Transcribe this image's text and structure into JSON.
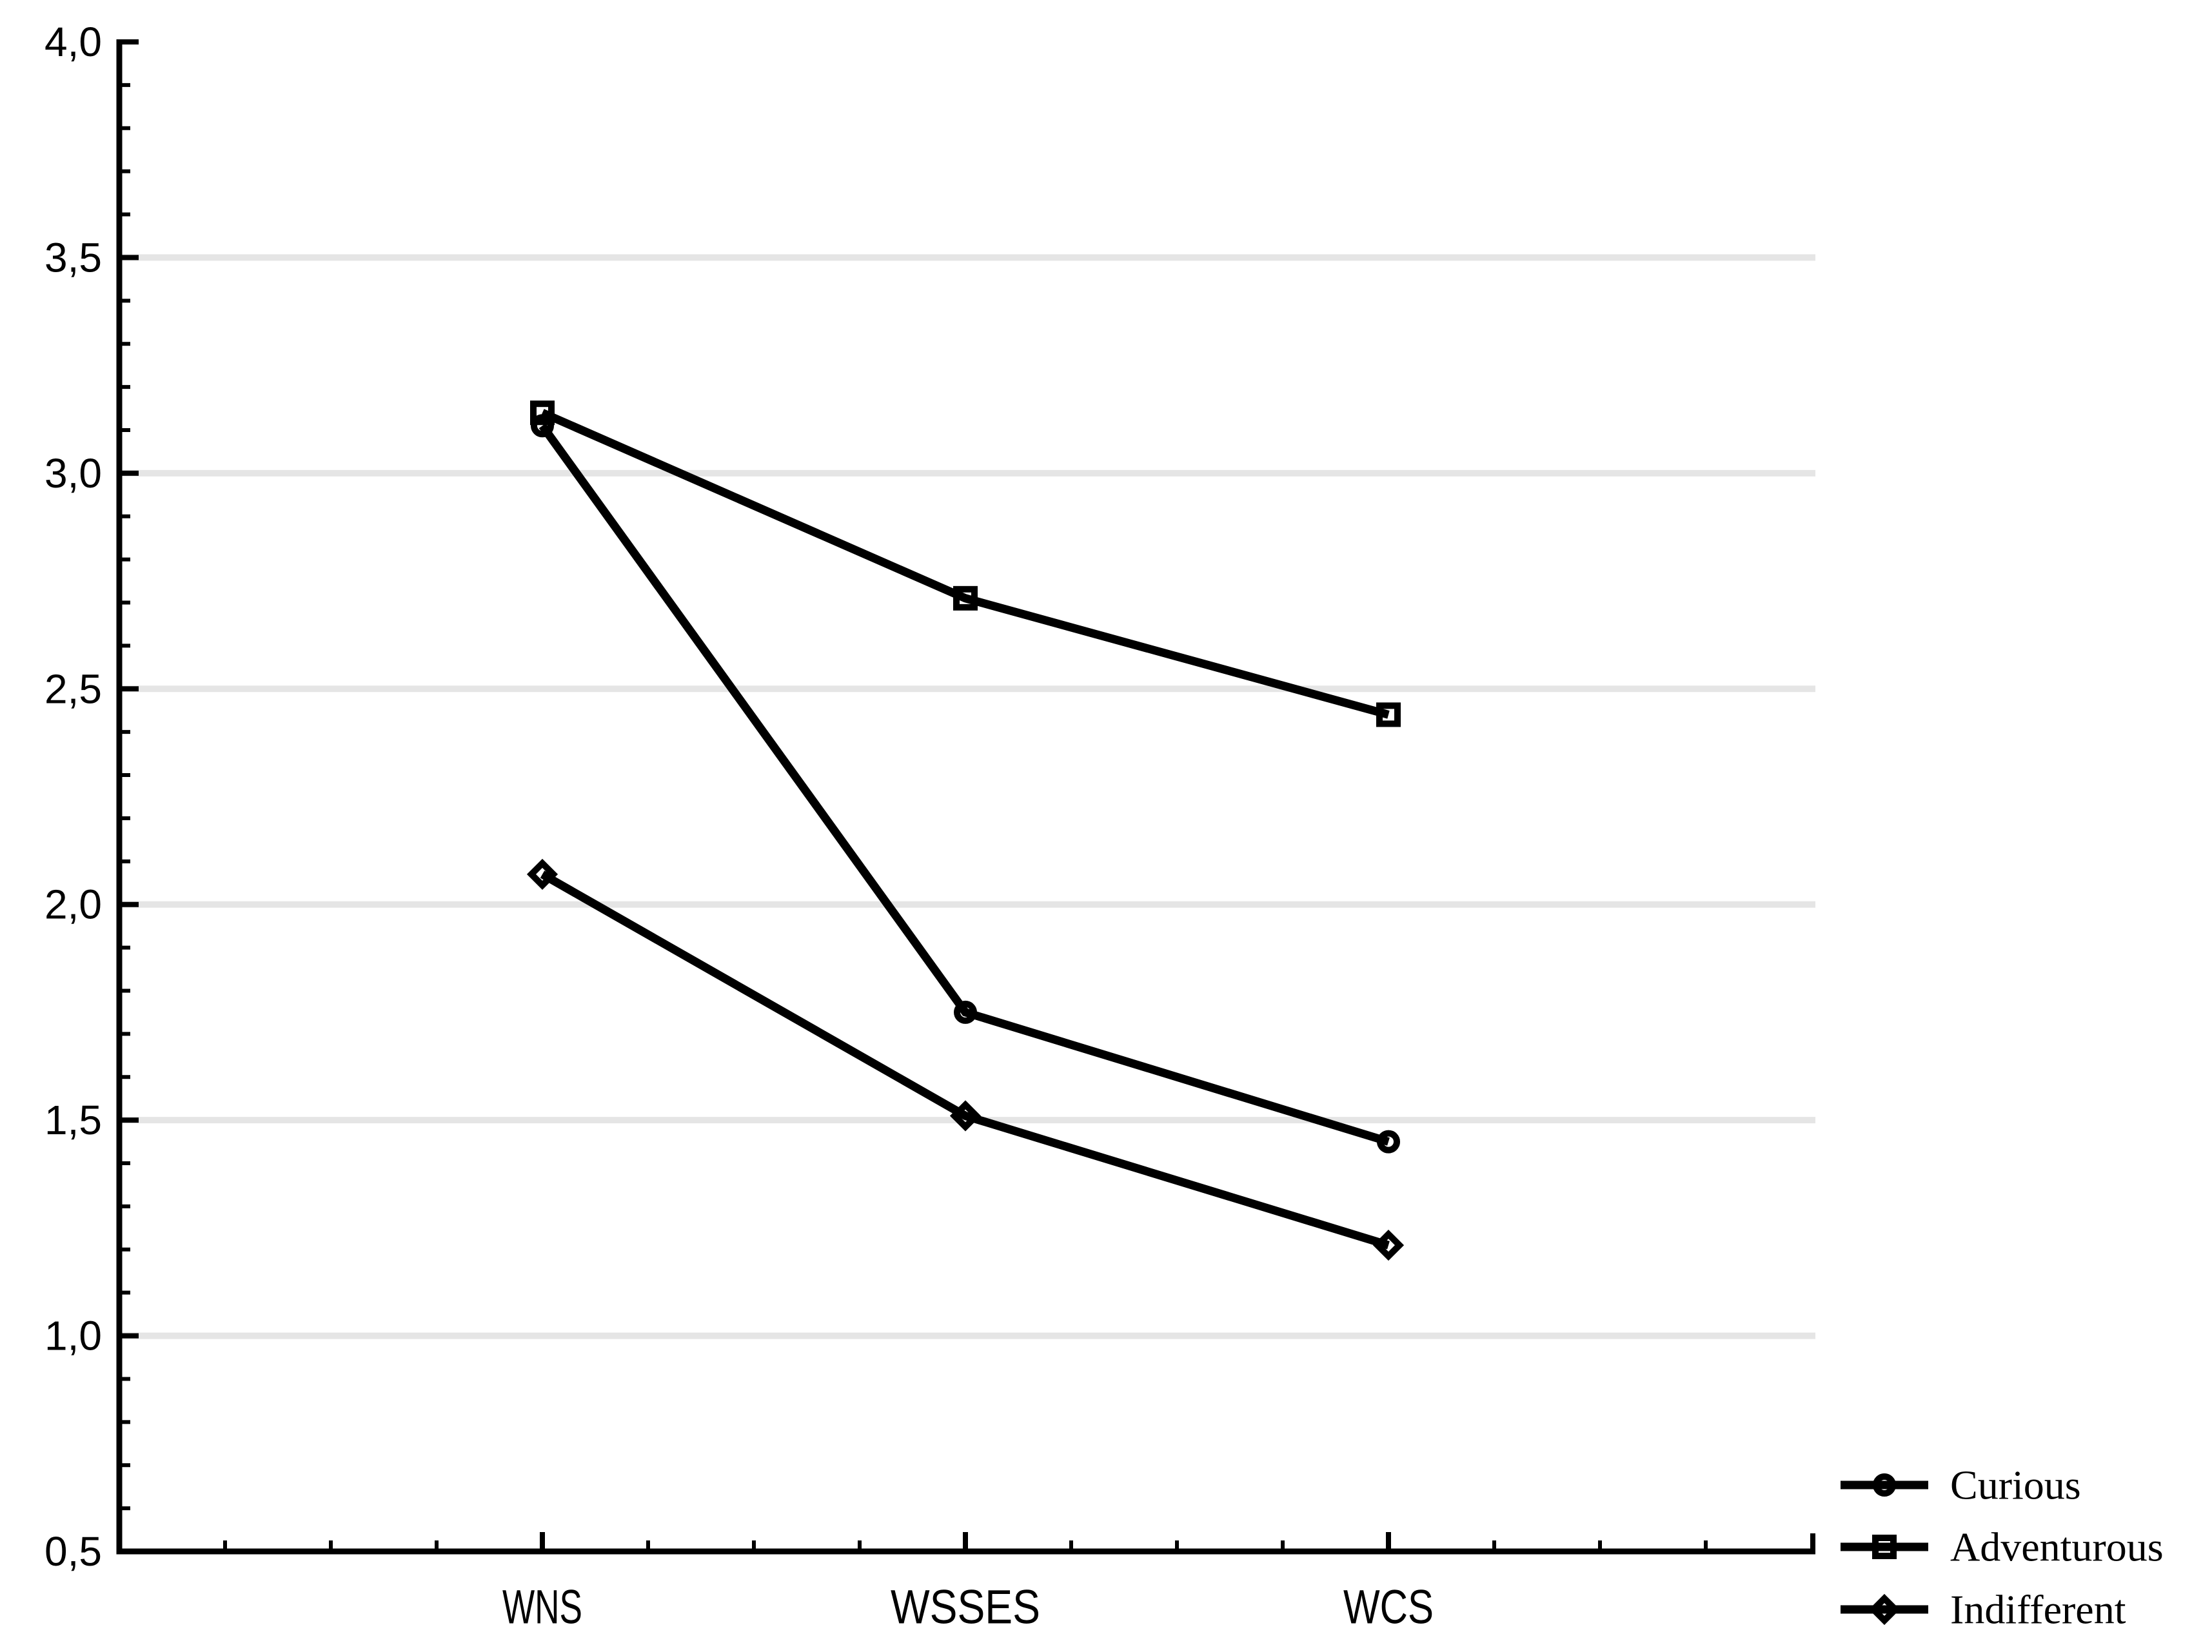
{
  "chart_data": {
    "type": "line",
    "categories": [
      "WNS",
      "WSSES",
      "WCS"
    ],
    "series": [
      {
        "name": "Curious",
        "marker": "circle",
        "values": [
          3.11,
          1.75,
          1.45
        ]
      },
      {
        "name": "Adventurous",
        "marker": "square",
        "values": [
          3.14,
          2.71,
          2.44
        ]
      },
      {
        "name": "Indifferent",
        "marker": "diamond",
        "values": [
          2.07,
          1.51,
          1.21
        ]
      }
    ],
    "y_axis": {
      "min": 0.5,
      "max": 4.0,
      "major_step": 0.5,
      "minor_step": 0.1,
      "decimal_separator": ",",
      "tick_labels": [
        "4,0",
        "3,5",
        "3,0",
        "2,5",
        "2,0",
        "1,5",
        "1,0",
        "0,5"
      ]
    },
    "x_axis": {
      "labels": [
        "WNS",
        "WSSES",
        "WCS"
      ]
    },
    "legend": {
      "position": "bottom-right",
      "entries": [
        {
          "label": "Curious",
          "marker": "circle"
        },
        {
          "label": "Adventurous",
          "marker": "square"
        },
        {
          "label": "Indifferent",
          "marker": "diamond"
        }
      ]
    },
    "grid": "horizontal-major-only",
    "colors": {
      "series_line": "#000000",
      "marker_stroke": "#000000",
      "axis": "#000000",
      "gridline": "#e5e5e5",
      "background": "#ffffff",
      "text": "#000000"
    }
  }
}
